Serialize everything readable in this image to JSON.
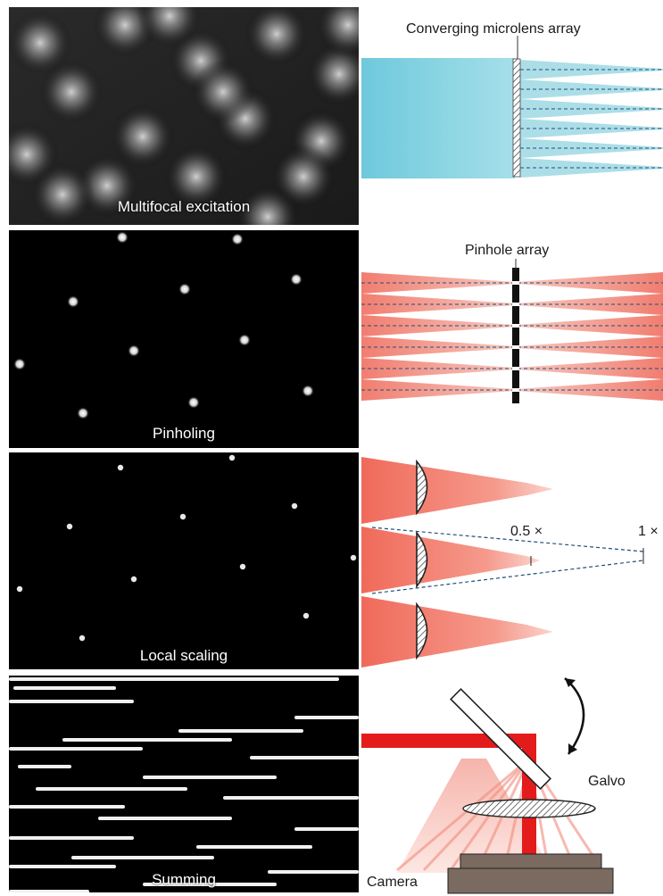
{
  "panels": [
    {
      "caption": "Multifocal excitation"
    },
    {
      "caption": "Pinholing"
    },
    {
      "caption": "Local scaling"
    },
    {
      "caption": "Summing"
    }
  ],
  "labels": {
    "microlens": "Converging microlens array",
    "pinhole": "Pinhole array",
    "scale_half": "0.5 ×",
    "scale_one": "1 ×",
    "galvo": "Galvo",
    "camera": "Camera"
  },
  "colors": {
    "beam_blue": "#7fd0df",
    "beam_red": "#f07a6c",
    "laser_red": "#e31b1b",
    "panel_bg": "#000000"
  }
}
